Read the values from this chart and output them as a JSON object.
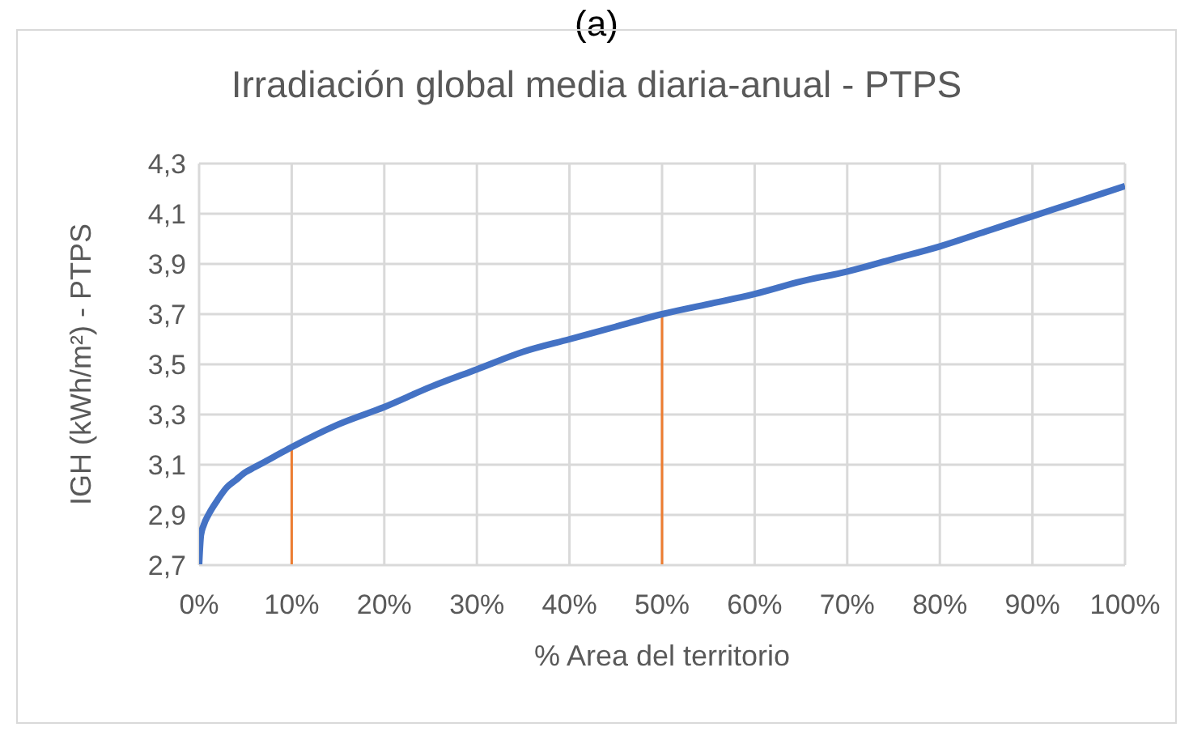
{
  "chart_data": {
    "type": "line",
    "title": "Irradiación global media diaria-anual - PTPS",
    "subtitle": "(a)",
    "xlabel": "% Area del territorio",
    "ylabel": "IGH (kWh/m²) - PTPS",
    "x": [
      0,
      0.2,
      0.5,
      1,
      2,
      3,
      4,
      5,
      6,
      8,
      10,
      15,
      20,
      25,
      30,
      35,
      40,
      45,
      50,
      55,
      60,
      65,
      70,
      75,
      80,
      85,
      90,
      95,
      100
    ],
    "series": [
      {
        "color": "#4472c4",
        "values": [
          2.7,
          2.82,
          2.86,
          2.9,
          2.96,
          3.01,
          3.04,
          3.07,
          3.09,
          3.13,
          3.17,
          3.26,
          3.33,
          3.41,
          3.48,
          3.55,
          3.6,
          3.65,
          3.7,
          3.74,
          3.78,
          3.83,
          3.87,
          3.92,
          3.97,
          4.03,
          4.09,
          4.15,
          4.21
        ]
      }
    ],
    "xlim": [
      0,
      100
    ],
    "xticks": [
      {
        "value": 0,
        "label": "0%"
      },
      {
        "value": 10,
        "label": "10%"
      },
      {
        "value": 20,
        "label": "20%"
      },
      {
        "value": 30,
        "label": "30%"
      },
      {
        "value": 40,
        "label": "40%"
      },
      {
        "value": 50,
        "label": "50%"
      },
      {
        "value": 60,
        "label": "60%"
      },
      {
        "value": 70,
        "label": "70%"
      },
      {
        "value": 80,
        "label": "80%"
      },
      {
        "value": 90,
        "label": "90%"
      },
      {
        "value": 100,
        "label": "100%"
      }
    ],
    "ylim": [
      2.7,
      4.3
    ],
    "yticks": [
      {
        "value": 2.7,
        "label": "2,7"
      },
      {
        "value": 2.9,
        "label": "2,9"
      },
      {
        "value": 3.1,
        "label": "3,1"
      },
      {
        "value": 3.3,
        "label": "3,3"
      },
      {
        "value": 3.5,
        "label": "3,5"
      },
      {
        "value": 3.7,
        "label": "3,7"
      },
      {
        "value": 3.9,
        "label": "3,9"
      },
      {
        "value": 4.1,
        "label": "4,1"
      },
      {
        "value": 4.3,
        "label": "4,3"
      }
    ],
    "ref_lines": [
      {
        "axis": "x",
        "value": 10,
        "color": "#ed7d31"
      },
      {
        "axis": "x",
        "value": 50,
        "color": "#ed7d31"
      }
    ],
    "grid": true,
    "marker": "none",
    "line_style": "solid"
  }
}
